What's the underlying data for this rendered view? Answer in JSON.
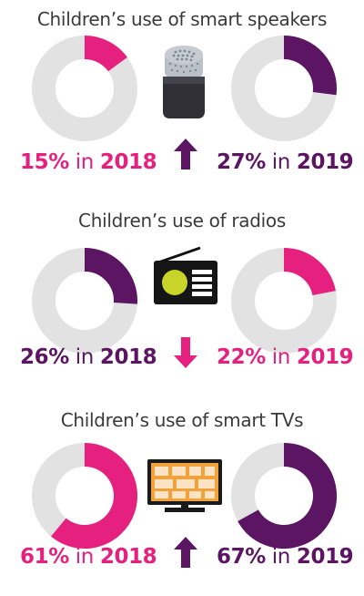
{
  "colors": {
    "magenta": "#e6207f",
    "purple": "#5b1563",
    "track": "#e2e2e2",
    "text": "#3a3a3a"
  },
  "sections": [
    {
      "title": "Children’s use of smart speakers",
      "device_icon": "smart-speaker-icon",
      "trend": "up",
      "left": {
        "value": 15,
        "year": "2018",
        "color": "magenta",
        "pct_text": "15%",
        "in_text": "in",
        "year_text": "2018"
      },
      "right": {
        "value": 27,
        "year": "2019",
        "color": "purple",
        "pct_text": "27%",
        "in_text": "in",
        "year_text": "2019"
      }
    },
    {
      "title": "Children’s use of radios",
      "device_icon": "radio-icon",
      "trend": "down",
      "left": {
        "value": 26,
        "year": "2018",
        "color": "purple",
        "pct_text": "26%",
        "in_text": "in",
        "year_text": "2018"
      },
      "right": {
        "value": 22,
        "year": "2019",
        "color": "magenta",
        "pct_text": "22%",
        "in_text": "in",
        "year_text": "2019"
      }
    },
    {
      "title": "Children’s use of smart TVs",
      "device_icon": "smart-tv-icon",
      "trend": "up",
      "left": {
        "value": 61,
        "year": "2018",
        "color": "magenta",
        "pct_text": "61%",
        "in_text": "in",
        "year_text": "2018"
      },
      "right": {
        "value": 67,
        "year": "2019",
        "color": "purple",
        "pct_text": "67%",
        "in_text": "in",
        "year_text": "2019"
      }
    }
  ],
  "chart_data": {
    "type": "pie",
    "charts": [
      {
        "title": "Children’s use of smart speakers",
        "categories": [
          "2018",
          "2019"
        ],
        "values": [
          15,
          27
        ],
        "unit": "%"
      },
      {
        "title": "Children’s use of radios",
        "categories": [
          "2018",
          "2019"
        ],
        "values": [
          26,
          22
        ],
        "unit": "%"
      },
      {
        "title": "Children’s use of smart TVs",
        "categories": [
          "2018",
          "2019"
        ],
        "values": [
          61,
          67
        ],
        "unit": "%"
      }
    ]
  }
}
